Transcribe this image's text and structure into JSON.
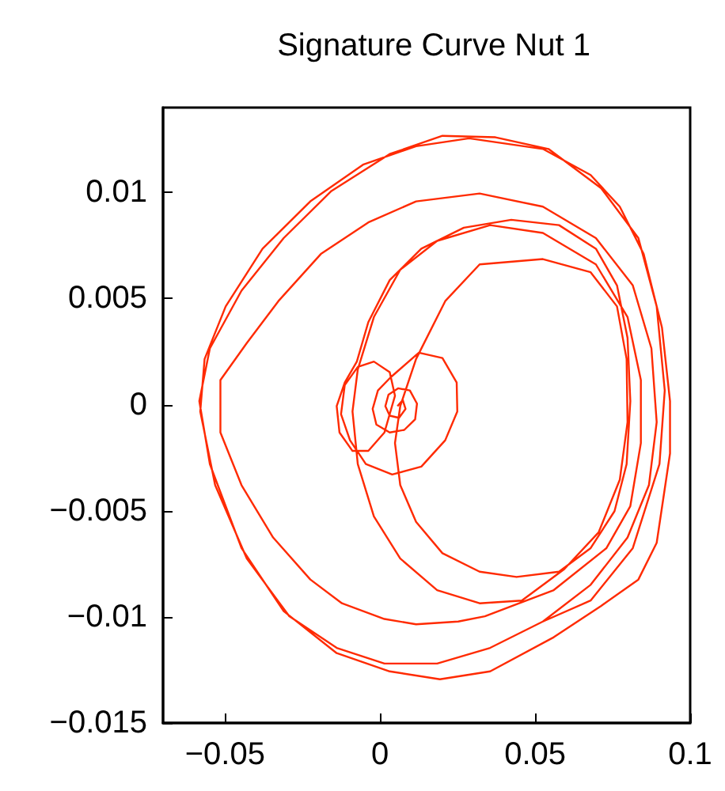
{
  "chart_data": {
    "type": "line",
    "title": "Signature Curve Nut 1",
    "xlim": [
      -0.07,
      0.1
    ],
    "xticks": [
      {
        "value": -0.05,
        "label": "−0.05"
      },
      0,
      0.05,
      0.1
    ],
    "ylim": [
      -0.015,
      0.014
    ],
    "yticks": [
      {
        "value": -0.015,
        "label": "−0.015"
      },
      {
        "value": -0.01,
        "label": "−0.01"
      },
      {
        "value": -0.005,
        "label": "−0.005"
      },
      0,
      0.005,
      0.01
    ],
    "series": [
      {
        "color": "#ff2a00",
        "x": [
          0.0056,
          0.0073,
          0.0082,
          0.0061,
          0.0031,
          0.0017,
          0.0027,
          0.0058,
          0.0096,
          0.0119,
          0.0113,
          0.0078,
          0.0031,
          -0.0012,
          -0.0024,
          -0.0007,
          0.0034,
          0.0125,
          0.0201,
          0.0247,
          0.0249,
          0.021,
          0.0133,
          0.0039,
          -0.0046,
          -0.0097,
          -0.0126,
          -0.0114,
          -0.0072,
          -0.002,
          0.0031,
          0.0048,
          0.0014,
          -0.0038,
          -0.0089,
          -0.0131,
          -0.014,
          -0.0114,
          -0.0075,
          -0.0038,
          0.0031,
          0.0133,
          0.027,
          0.0423,
          0.0577,
          0.0696,
          0.0764,
          0.0798,
          0.0807,
          0.0795,
          0.0756,
          0.0679,
          0.0577,
          0.044,
          0.0321,
          0.0201,
          0.0116,
          0.0065,
          0.0048,
          0.0065,
          0.0116,
          0.021,
          0.0321,
          0.0525,
          0.0679,
          0.0764,
          0.0795,
          0.0798,
          0.0773,
          0.0705,
          0.0594,
          0.0457,
          0.0321,
          0.0184,
          0.0065,
          -0.002,
          -0.0072,
          -0.0089,
          -0.0072,
          -0.002,
          0.0065,
          0.0184,
          0.0355,
          0.0525,
          0.0696,
          0.0798,
          0.0841,
          0.0841,
          0.0807,
          0.073,
          0.056,
          0.0338,
          0.0252,
          0.0116,
          0.0014,
          -0.0123,
          -0.0225,
          -0.0345,
          -0.0447,
          -0.0515,
          -0.0515,
          -0.043,
          -0.0328,
          -0.0191,
          -0.0038,
          0.0116,
          0.0321,
          0.0525,
          0.0696,
          0.0815,
          0.0875,
          0.0892,
          0.0867,
          0.0798,
          0.0679,
          0.0525,
          0.0355,
          0.0184,
          0.0014,
          -0.014,
          -0.0293,
          -0.043,
          -0.0532,
          -0.058,
          -0.0566,
          -0.0498,
          -0.0379,
          -0.0225,
          -0.0055,
          0.0116,
          0.0287,
          0.0525,
          0.0679,
          0.0773,
          0.085,
          0.0909,
          0.0935,
          0.0935,
          0.0892,
          0.0833,
          0.0713,
          0.056,
          0.0355,
          0.0193,
          0.0031,
          -0.014,
          -0.0311,
          -0.0447,
          -0.0549,
          -0.0583,
          -0.0549,
          -0.0447,
          -0.0311,
          -0.0157,
          0.0031,
          0.0201,
          0.0372,
          0.0543,
          0.0713,
          0.0833,
          0.0892,
          0.0918,
          0.0901,
          0.0815,
          0.0679,
          0.0525
        ],
        "values": [
          -7e-05,
          0.00022,
          -0.0002,
          -0.00062,
          -0.00052,
          -7e-05,
          0.00047,
          0.00077,
          0.00067,
          5e-05,
          -0.00069,
          -0.00119,
          -0.00131,
          -0.00094,
          -0.0002,
          0.00067,
          0.00129,
          0.00245,
          0.0022,
          0.00104,
          -0.00032,
          -0.00168,
          -0.00292,
          -0.00329,
          -0.0028,
          -0.00168,
          -0.00045,
          0.00092,
          0.00178,
          0.00203,
          0.00153,
          0.00042,
          -0.00131,
          -0.00218,
          -0.00218,
          -0.00131,
          -7e-05,
          0.00104,
          0.00203,
          0.00389,
          0.00587,
          0.00735,
          0.00834,
          0.00871,
          0.00846,
          0.00735,
          0.00562,
          0.00314,
          0.00017,
          -0.0028,
          -0.00502,
          -0.00676,
          -0.00787,
          -0.00812,
          -0.00787,
          -0.007,
          -0.00552,
          -0.00379,
          -0.00181,
          -7e-05,
          0.00215,
          0.00488,
          0.00661,
          0.00686,
          0.00624,
          0.00463,
          0.00215,
          -0.00082,
          -0.00354,
          -0.00601,
          -0.00775,
          -0.00923,
          -0.00936,
          -0.00874,
          -0.00725,
          -0.00527,
          -0.0028,
          -0.00032,
          0.00166,
          0.00413,
          0.00636,
          0.00772,
          0.00846,
          0.00809,
          0.00661,
          0.00413,
          0.00116,
          -0.00181,
          -0.00478,
          -0.00676,
          -0.00874,
          -0.00997,
          -0.01022,
          -0.01035,
          -0.0101,
          -0.00936,
          -0.00824,
          -0.00626,
          -0.00379,
          -0.00131,
          0.00116,
          0.0029,
          0.00488,
          0.0071,
          0.00859,
          0.00958,
          0.00995,
          0.00933,
          0.00785,
          0.00562,
          0.00265,
          -0.00082,
          -0.00379,
          -0.00626,
          -0.00849,
          -0.01022,
          -0.01146,
          -0.0122,
          -0.0122,
          -0.01146,
          -0.00997,
          -0.00725,
          -0.00379,
          -0.00032,
          0.00215,
          0.00463,
          0.00735,
          0.00958,
          0.01131,
          0.01218,
          0.01255,
          0.01205,
          0.01082,
          0.00933,
          0.0071,
          0.00364,
          0.00017,
          -0.0023,
          -0.00651,
          -0.00824,
          -0.00948,
          -0.01096,
          -0.01257,
          -0.01294,
          -0.01257,
          -0.01171,
          -0.00973,
          -0.00676,
          -0.0028,
          0.00017,
          0.00265,
          0.00537,
          0.00785,
          0.01007,
          0.01181,
          0.01267,
          0.0126,
          0.01205,
          0.0102,
          0.00785,
          0.00463,
          0.00067,
          -0.0028,
          -0.00676,
          -0.00923,
          -0.01022
        ]
      }
    ]
  }
}
